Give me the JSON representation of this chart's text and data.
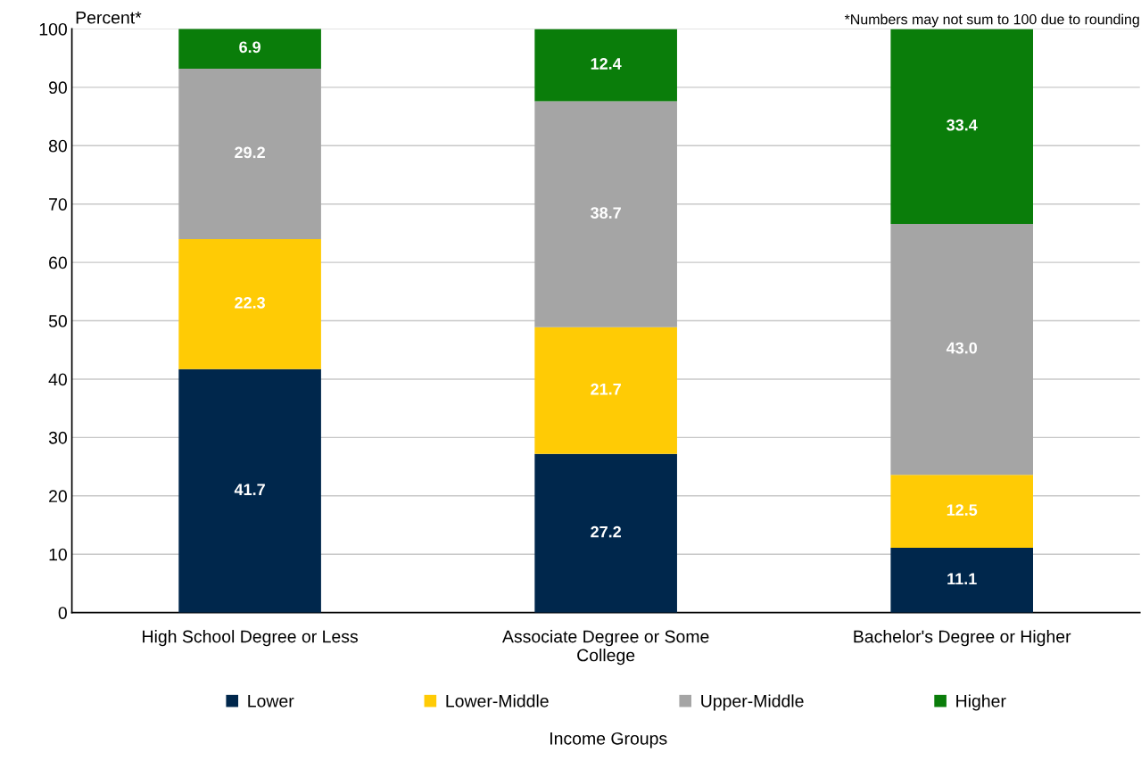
{
  "chart_data": {
    "type": "bar",
    "stacked": true,
    "ylabel": "Percent*",
    "annotations": [
      "*Numbers may not sum to 100 due to rounding"
    ],
    "legend_title": "Income Groups",
    "categories": [
      "High School Degree or Less",
      "Associate Degree or Some\nCollege",
      "Bachelor's Degree or Higher"
    ],
    "series": [
      {
        "name": "Lower",
        "color": "#00274c",
        "values": [
          41.7,
          27.2,
          11.1
        ],
        "value_labels": [
          "41.7",
          "27.2",
          "11.1"
        ]
      },
      {
        "name": "Lower-Middle",
        "color": "#ffcb05",
        "values": [
          22.3,
          21.7,
          12.5
        ],
        "value_labels": [
          "22.3",
          "21.7",
          "12.5"
        ]
      },
      {
        "name": "Upper-Middle",
        "color": "#a5a5a5",
        "values": [
          29.2,
          38.7,
          43.0
        ],
        "value_labels": [
          "29.2",
          "38.7",
          "43.0"
        ]
      },
      {
        "name": "Higher",
        "color": "#0a7d0a",
        "values": [
          6.9,
          12.4,
          33.4
        ],
        "value_labels": [
          "6.9",
          "12.4",
          "33.4"
        ]
      }
    ],
    "ylim": [
      0,
      100
    ],
    "yticks": [
      0,
      10,
      20,
      30,
      40,
      50,
      60,
      70,
      80,
      90,
      100
    ],
    "grid": "y",
    "legend": "bottom"
  }
}
